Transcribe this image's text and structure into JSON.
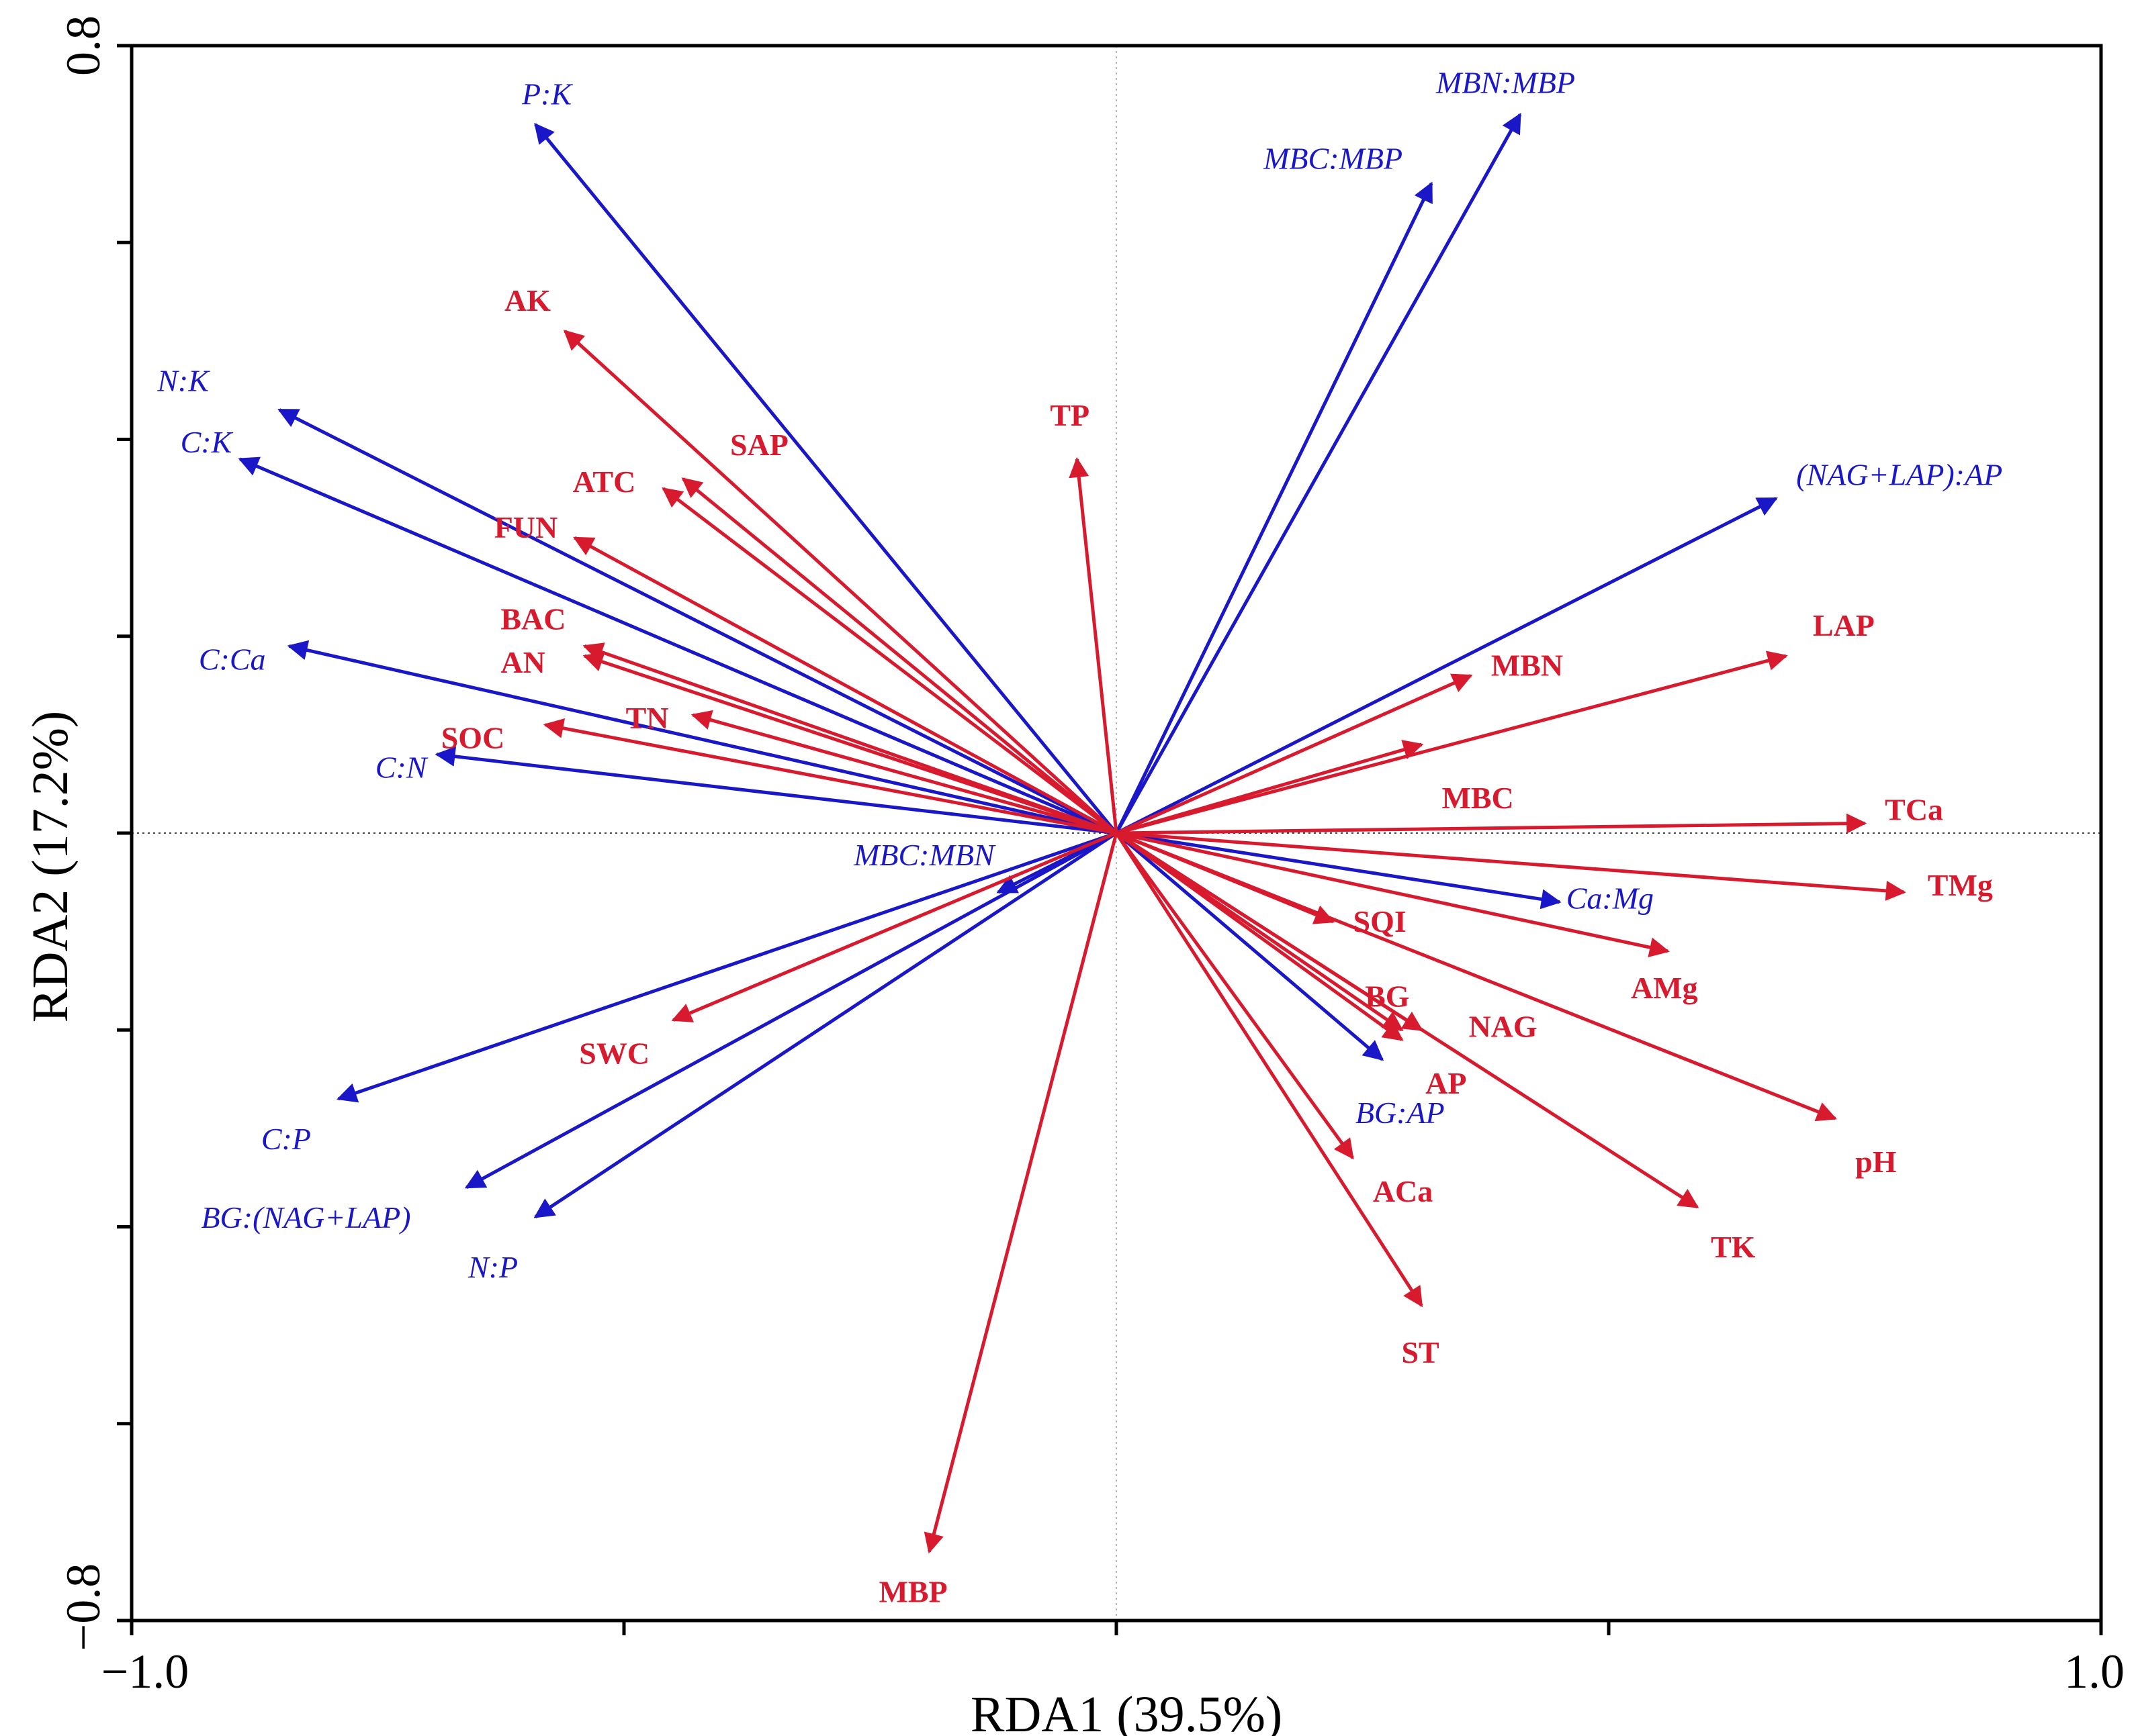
{
  "chart_data": {
    "type": "biplot",
    "title": "",
    "xlabel": "RDA1 (39.5%)",
    "ylabel": "RDA2 (17.2%)",
    "xlim": [
      -1.0,
      1.0
    ],
    "ylim": [
      -0.8,
      0.8
    ],
    "x_tick_labels": [
      "−1.0",
      "1.0"
    ],
    "y_tick_labels": [
      "0.8",
      "−0.8"
    ],
    "colors": {
      "response": "#1a17c8",
      "explanatory": "#d81a2e",
      "axis": "#000000"
    },
    "response_vectors": [
      {
        "name": "P:K",
        "x": -0.59,
        "y": 0.72
      },
      {
        "name": "MBN:MBP",
        "x": 0.41,
        "y": 0.73
      },
      {
        "name": "MBC:MBP",
        "x": 0.32,
        "y": 0.66
      },
      {
        "name": "N:K",
        "x": -0.85,
        "y": 0.43
      },
      {
        "name": "C:K",
        "x": -0.89,
        "y": 0.38
      },
      {
        "name": "(NAG+LAP):AP",
        "x": 0.67,
        "y": 0.34
      },
      {
        "name": "C:Ca",
        "x": -0.84,
        "y": 0.19
      },
      {
        "name": "C:N",
        "x": -0.69,
        "y": 0.08
      },
      {
        "name": "MBC:MBN",
        "x": -0.12,
        "y": -0.06
      },
      {
        "name": "Ca:Mg",
        "x": 0.45,
        "y": -0.07
      },
      {
        "name": "BG:AP",
        "x": 0.27,
        "y": -0.23
      },
      {
        "name": "C:P",
        "x": -0.79,
        "y": -0.27
      },
      {
        "name": "BG:(NAG+LAP)",
        "x": -0.66,
        "y": -0.36
      },
      {
        "name": "N:P",
        "x": -0.59,
        "y": -0.39
      }
    ],
    "explanatory_vectors": [
      {
        "name": "AK",
        "x": -0.56,
        "y": 0.51
      },
      {
        "name": "SAP",
        "x": -0.44,
        "y": 0.36
      },
      {
        "name": "ATC",
        "x": -0.46,
        "y": 0.35
      },
      {
        "name": "TP",
        "x": -0.04,
        "y": 0.38
      },
      {
        "name": "FUN",
        "x": -0.55,
        "y": 0.3
      },
      {
        "name": "BAC",
        "x": -0.54,
        "y": 0.19
      },
      {
        "name": "AN",
        "x": -0.54,
        "y": 0.18
      },
      {
        "name": "TN",
        "x": -0.43,
        "y": 0.12
      },
      {
        "name": "SOC",
        "x": -0.58,
        "y": 0.11
      },
      {
        "name": "MBN",
        "x": 0.36,
        "y": 0.16
      },
      {
        "name": "MBC",
        "x": 0.31,
        "y": 0.09
      },
      {
        "name": "LAP",
        "x": 0.68,
        "y": 0.18
      },
      {
        "name": "TCa",
        "x": 0.76,
        "y": 0.01
      },
      {
        "name": "TMg",
        "x": 0.8,
        "y": -0.06
      },
      {
        "name": "SQI",
        "x": 0.22,
        "y": -0.09
      },
      {
        "name": "AMg",
        "x": 0.56,
        "y": -0.12
      },
      {
        "name": "BG",
        "x": 0.29,
        "y": -0.2
      },
      {
        "name": "NAG",
        "x": 0.31,
        "y": -0.2
      },
      {
        "name": "AP",
        "x": 0.29,
        "y": -0.21
      },
      {
        "name": "pH",
        "x": 0.73,
        "y": -0.29
      },
      {
        "name": "ACa",
        "x": 0.24,
        "y": -0.33
      },
      {
        "name": "TK",
        "x": 0.59,
        "y": -0.38
      },
      {
        "name": "ST",
        "x": 0.31,
        "y": -0.48
      },
      {
        "name": "SWC",
        "x": -0.45,
        "y": -0.19
      },
      {
        "name": "MBP",
        "x": -0.19,
        "y": -0.73
      }
    ]
  }
}
